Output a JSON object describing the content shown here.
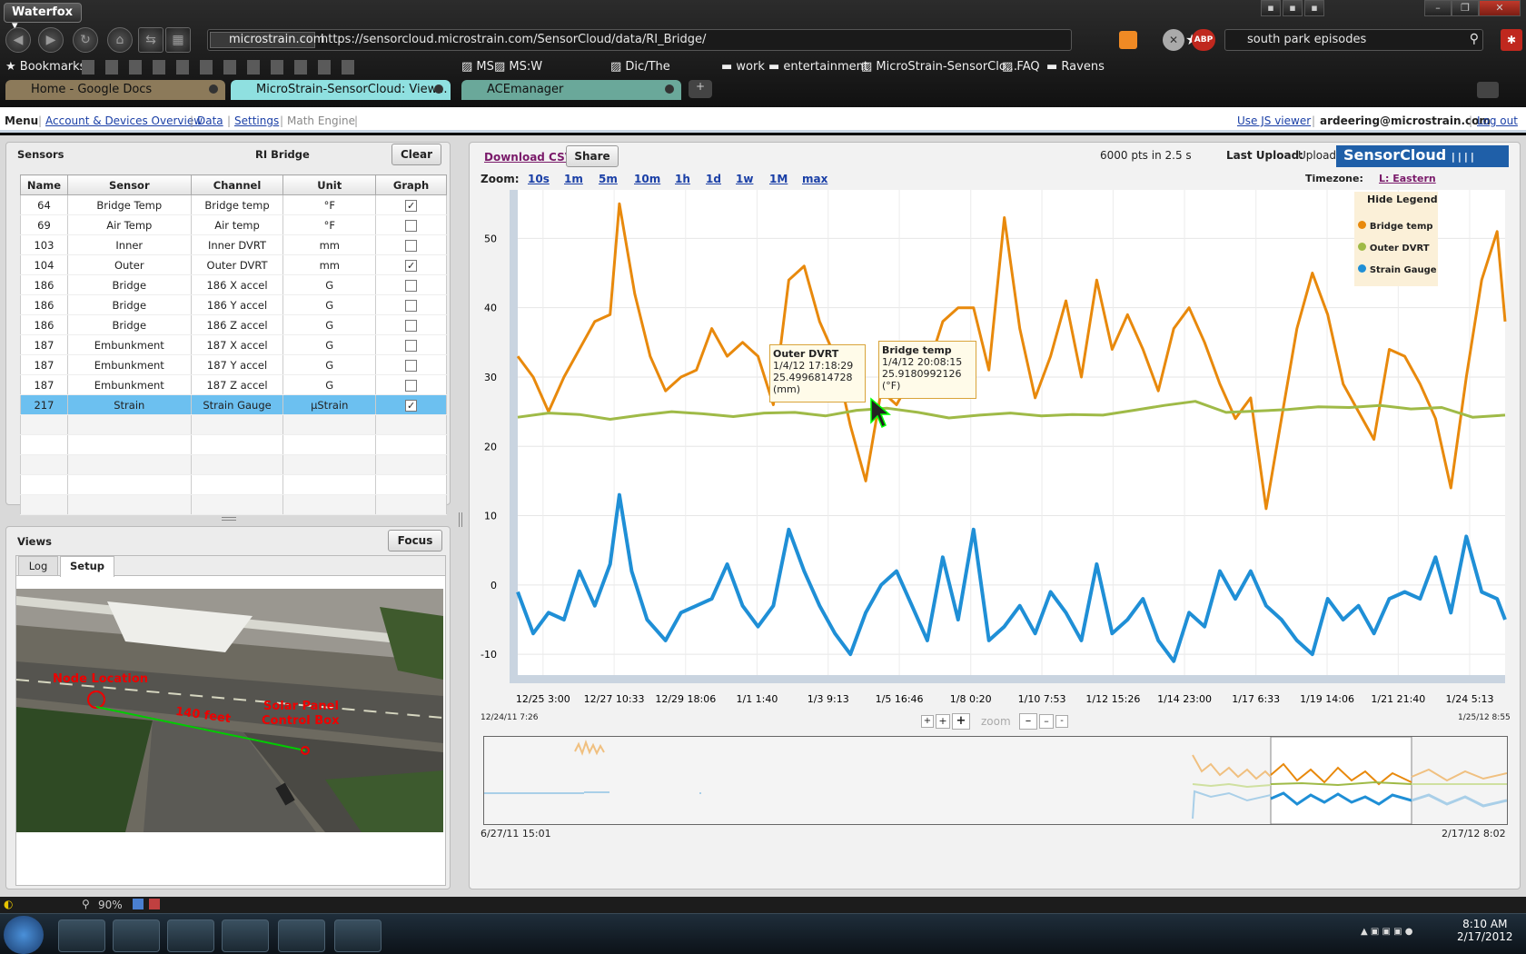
{
  "browser": {
    "app_name": "Waterfox",
    "site_identity": "microstrain.com",
    "url": "https://sensorcloud.microstrain.com/SensorCloud/data/RI_Bridge/",
    "search_text": "south park episodes",
    "bookmarks": [
      "Bookmarks",
      "MS",
      "MS:W",
      "Dic/The",
      "work",
      "entertainment",
      "MicroStrain-SensorClo...",
      "FAQ",
      "Ravens"
    ],
    "tabs": [
      "Home - Google Docs",
      "MicroStrain-SensorCloud: View...",
      "ACEmanager"
    ],
    "zoom_level": "90%"
  },
  "menu": {
    "items": [
      "Menu",
      "Account & Devices Overview",
      "Data",
      "Settings",
      "Math Engine"
    ],
    "use_js_viewer": "Use JS viewer",
    "user": "ardeering@microstrain.com",
    "logout": "Log out"
  },
  "sensors_panel": {
    "title": "Sensors",
    "site": "RI Bridge",
    "clear": "Clear",
    "headers": [
      "Name",
      "Sensor",
      "Channel",
      "Unit",
      "Graph"
    ],
    "rows": [
      {
        "name": "64",
        "sensor": "Bridge Temp",
        "channel": "Bridge temp",
        "unit": "°F",
        "graph": "✓"
      },
      {
        "name": "69",
        "sensor": "Air Temp",
        "channel": "Air temp",
        "unit": "°F",
        "graph": ""
      },
      {
        "name": "103",
        "sensor": "Inner",
        "channel": "Inner DVRT",
        "unit": "mm",
        "graph": ""
      },
      {
        "name": "104",
        "sensor": "Outer",
        "channel": "Outer DVRT",
        "unit": "mm",
        "graph": "✓"
      },
      {
        "name": "186",
        "sensor": "Bridge",
        "channel": "186 X accel",
        "unit": "G",
        "graph": ""
      },
      {
        "name": "186",
        "sensor": "Bridge",
        "channel": "186 Y accel",
        "unit": "G",
        "graph": ""
      },
      {
        "name": "186",
        "sensor": "Bridge",
        "channel": "186 Z accel",
        "unit": "G",
        "graph": ""
      },
      {
        "name": "187",
        "sensor": "Embunkment",
        "channel": "187 X accel",
        "unit": "G",
        "graph": ""
      },
      {
        "name": "187",
        "sensor": "Embunkment",
        "channel": "187 Y accel",
        "unit": "G",
        "graph": ""
      },
      {
        "name": "187",
        "sensor": "Embunkment",
        "channel": "187 Z accel",
        "unit": "G",
        "graph": ""
      },
      {
        "name": "217",
        "sensor": "Strain",
        "channel": "Strain Gauge",
        "unit": "µStrain",
        "graph": "✓"
      }
    ]
  },
  "views_panel": {
    "title": "Views",
    "focus": "Focus",
    "tabs": [
      "Log",
      "Setup"
    ],
    "photo_labels": [
      "Node Location",
      "140 feet",
      "Solar Panel",
      "Control Box"
    ]
  },
  "graph_panel": {
    "download_csv": "Download CSV",
    "share": "Share",
    "stats": "6000 pts in 2.5 s",
    "last_upload_label": "Last Upload:",
    "last_upload_value": "Uploading...",
    "logo": "SensorCloud",
    "zoom_label": "Zoom:",
    "zoom_options": [
      "10s",
      "1m",
      "5m",
      "10m",
      "1h",
      "1d",
      "1w",
      "1M",
      "max"
    ],
    "timezone_label": "Timezone:",
    "timezone_value": "L: Eastern",
    "hide_legend": "Hide Legend",
    "range_start": "12/24/11 7:26",
    "range_end": "1/25/12 8:55",
    "overview_start": "6/27/11 15:01",
    "overview_end": "2/17/12 8:02",
    "zoom_control_label": "zoom"
  },
  "tooltips": [
    {
      "title": "Outer DVRT",
      "time": "1/4/12 17:18:29",
      "value": "25.4996814728",
      "unit": "(mm)"
    },
    {
      "title": "Bridge temp",
      "time": "1/4/12 20:08:15",
      "value": "25.9180992126",
      "unit": "(°F)"
    }
  ],
  "chart_data": {
    "type": "line",
    "ylim": [
      -13,
      57
    ],
    "yticks": [
      -10,
      0,
      10,
      20,
      30,
      40,
      50
    ],
    "x_tick_labels": [
      "12/25 3:00",
      "12/27 10:33",
      "12/29 18:06",
      "1/1 1:40",
      "1/3 9:13",
      "1/5 16:46",
      "1/8 0:20",
      "1/10 7:53",
      "1/12 15:26",
      "1/14 23:00",
      "1/17 6:33",
      "1/19 14:06",
      "1/21 21:40",
      "1/24 5:13"
    ],
    "x_days": [
      0.82,
      3.13,
      5.45,
      7.77,
      10.08,
      12.39,
      14.71,
      17.02,
      19.33,
      21.65,
      23.97,
      26.28,
      28.59,
      30.91
    ],
    "xlim": [
      0,
      32.06
    ],
    "grid": true,
    "legend_position": "top-right",
    "series": [
      {
        "name": "Bridge temp",
        "color": "#e8890c",
        "x": [
          0,
          0.5,
          1,
          1.5,
          2,
          2.5,
          3,
          3.3,
          3.8,
          4.3,
          4.8,
          5.3,
          5.8,
          6.3,
          6.8,
          7.3,
          7.8,
          8.3,
          8.8,
          9.3,
          9.8,
          10.3,
          10.8,
          11.3,
          11.8,
          12.3,
          12.8,
          13.3,
          13.8,
          14.3,
          14.8,
          15.3,
          15.8,
          16.3,
          16.8,
          17.3,
          17.8,
          18.3,
          18.8,
          19.3,
          19.8,
          20.3,
          20.8,
          21.3,
          21.8,
          22.3,
          22.8,
          23.3,
          23.8,
          24.3,
          24.8,
          25.3,
          25.8,
          26.3,
          26.8,
          27.3,
          27.8,
          28.3,
          28.8,
          29.3,
          29.8,
          30.3,
          30.8,
          31.3,
          31.8,
          32.06
        ],
        "y": [
          33,
          30,
          25,
          30,
          34,
          38,
          39,
          55,
          42,
          33,
          28,
          30,
          31,
          37,
          33,
          35,
          33,
          26,
          44,
          46,
          38,
          33,
          23,
          15,
          28,
          26,
          30,
          31,
          38,
          40,
          40,
          31,
          53,
          37,
          27,
          33,
          41,
          30,
          44,
          34,
          39,
          34,
          28,
          37,
          40,
          35,
          29,
          24,
          27,
          11,
          24,
          37,
          45,
          39,
          29,
          25,
          21,
          34,
          33,
          29,
          24,
          14,
          30,
          44,
          51,
          38
        ]
      },
      {
        "name": "Outer DVRT",
        "color": "#9fba47",
        "x": [
          0,
          1,
          2,
          3,
          4,
          5,
          6,
          7,
          8,
          9,
          10,
          11,
          12,
          13,
          14,
          15,
          16,
          17,
          18,
          19,
          20,
          21,
          22,
          23,
          24,
          25,
          26,
          27,
          28,
          29,
          30,
          31,
          32.06
        ],
        "y": [
          24.2,
          24.8,
          24.6,
          23.9,
          24.5,
          25.0,
          24.7,
          24.3,
          24.8,
          24.9,
          24.4,
          25.2,
          25.5,
          24.9,
          24.1,
          24.5,
          24.8,
          24.4,
          24.6,
          24.5,
          25.2,
          25.9,
          26.5,
          24.9,
          25.1,
          25.3,
          25.7,
          25.6,
          25.9,
          25.4,
          25.6,
          24.2,
          24.5
        ]
      },
      {
        "name": "Strain Gauge",
        "color": "#1f8fd6",
        "x": [
          0,
          0.5,
          1,
          1.5,
          2,
          2.5,
          3,
          3.3,
          3.7,
          4.2,
          4.8,
          5.3,
          5.8,
          6.3,
          6.8,
          7.3,
          7.8,
          8.3,
          8.8,
          9.3,
          9.8,
          10.3,
          10.8,
          11.3,
          11.8,
          12.3,
          12.8,
          13.3,
          13.8,
          14.3,
          14.8,
          15.3,
          15.8,
          16.3,
          16.8,
          17.3,
          17.8,
          18.3,
          18.8,
          19.3,
          19.8,
          20.3,
          20.8,
          21.3,
          21.8,
          22.3,
          22.8,
          23.3,
          23.8,
          24.3,
          24.8,
          25.3,
          25.8,
          26.3,
          26.8,
          27.3,
          27.8,
          28.3,
          28.8,
          29.3,
          29.8,
          30.3,
          30.8,
          31.3,
          31.8,
          32.06
        ],
        "y": [
          -1,
          -7,
          -4,
          -5,
          2,
          -3,
          3,
          13,
          2,
          -5,
          -8,
          -4,
          -3,
          -2,
          3,
          -3,
          -6,
          -3,
          8,
          2,
          -3,
          -7,
          -10,
          -4,
          0,
          2,
          -3,
          -8,
          4,
          -5,
          8,
          -8,
          -6,
          -3,
          -7,
          -1,
          -4,
          -8,
          3,
          -7,
          -5,
          -2,
          -8,
          -11,
          -4,
          -6,
          2,
          -2,
          2,
          -3,
          -5,
          -8,
          -10,
          -2,
          -5,
          -3,
          -7,
          -2,
          -1,
          -2,
          4,
          -4,
          7,
          -1,
          -2,
          -5
        ]
      }
    ]
  }
}
